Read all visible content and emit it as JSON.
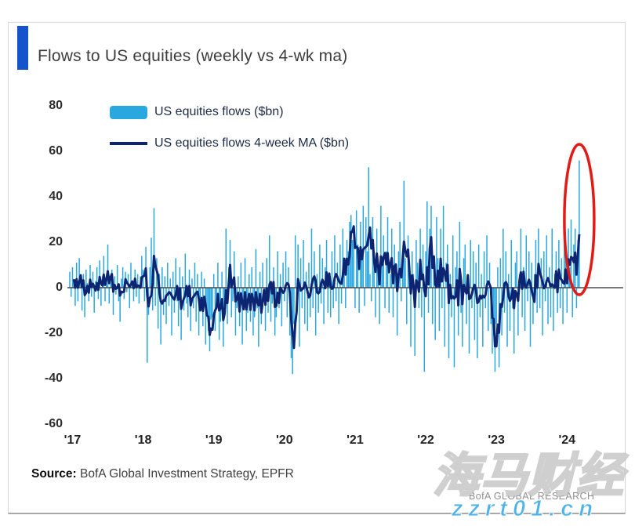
{
  "header": {
    "title": "Flows to US equities (weekly vs 4-wk ma)",
    "accent_color": "#1353cc"
  },
  "legend": {
    "items": [
      {
        "label": "US equities flows ($bn)",
        "swatch": "bar",
        "color": "#29a8e0"
      },
      {
        "label": "US equities flows 4-week MA ($bn)",
        "swatch": "line",
        "color": "#0d2472"
      }
    ]
  },
  "footer": {
    "source_label": "Source:",
    "source_text": " BofA Global Investment Strategy, EPFR",
    "brand": "BofA GLOBAL RESEARCH"
  },
  "watermark": {
    "cjk_text": "海马财经",
    "url_text": "zzrt01.cn",
    "url_color": "#4db2e8"
  },
  "chart_data": {
    "type": "bar",
    "subtype": "weekly bars with 4-week moving-average line overlay",
    "title": "Flows to US equities (weekly vs 4-wk ma)",
    "xlabel": "",
    "ylabel": "",
    "x_ticks": [
      "'17",
      "'18",
      "'19",
      "'20",
      "'21",
      "'22",
      "'23",
      "'24"
    ],
    "weeks_per_year": 52,
    "y_ticks": [
      80,
      60,
      40,
      20,
      0,
      -20,
      -40,
      -60
    ],
    "ylim": [
      -65,
      85
    ],
    "grid": false,
    "legend_position": "top-left",
    "zero_line_color": "#4a4a4a",
    "annotation": {
      "shape": "ellipse",
      "highlights": "latest weekly inflow spike",
      "value": 56,
      "color": "#e11b17"
    },
    "series": [
      {
        "name": "US equities flows ($bn)",
        "type": "bar",
        "color": "#29a8e0",
        "values": [
          7,
          -4,
          9,
          3,
          -8,
          11,
          -6,
          13,
          4,
          -10,
          6,
          -13,
          8,
          2,
          -6,
          10,
          -4,
          7,
          -11,
          3,
          9,
          -5,
          12,
          -8,
          5,
          14,
          -6,
          2,
          19,
          -7,
          4,
          8,
          -12,
          5,
          -3,
          10,
          -6,
          -15,
          4,
          9,
          -5,
          7,
          -2,
          6,
          -9,
          11,
          3,
          -6,
          8,
          -4,
          6,
          -7,
          5,
          14,
          8,
          -6,
          18,
          -33,
          -12,
          9,
          22,
          -10,
          35,
          -8,
          13,
          -18,
          6,
          -25,
          9,
          -12,
          5,
          -16,
          11,
          -8,
          4,
          -21,
          7,
          -11,
          13,
          -6,
          -17,
          9,
          -23,
          5,
          -10,
          15,
          -7,
          -13,
          8,
          -19,
          4,
          -9,
          11,
          -15,
          6,
          -21,
          -10,
          7,
          -17,
          4,
          -25,
          -11,
          -19,
          -28,
          -14,
          -13,
          6,
          -19,
          -9,
          11,
          -23,
          -15,
          7,
          -26,
          -11,
          26,
          -16,
          9,
          21,
          -13,
          -6,
          16,
          -21,
          -9,
          5,
          -17,
          11,
          -25,
          -7,
          13,
          -19,
          -11,
          6,
          -15,
          9,
          -21,
          -13,
          17,
          -9,
          -26,
          7,
          -16,
          11,
          -6,
          -19,
          13,
          -11,
          23,
          -15,
          -7,
          9,
          -21,
          -13,
          16,
          -9,
          6,
          -17,
          11,
          -6,
          16,
          -13,
          9,
          -21,
          -31,
          -38,
          -16,
          23,
          -11,
          19,
          -26,
          13,
          -9,
          21,
          -16,
          7,
          -19,
          11,
          -13,
          26,
          -9,
          16,
          -21,
          6,
          -11,
          19,
          -7,
          13,
          -16,
          9,
          21,
          -11,
          6,
          -13,
          16,
          -9,
          23,
          -6,
          11,
          -16,
          19,
          -7,
          26,
          13,
          -9,
          21,
          16,
          29,
          32,
          21,
          26,
          -9,
          34,
          19,
          -11,
          29,
          13,
          36,
          -8,
          31,
          16,
          53,
          6,
          -6,
          31,
          16,
          -13,
          26,
          9,
          -16,
          36,
          11,
          23,
          -9,
          16,
          31,
          -11,
          6,
          26,
          -13,
          19,
          9,
          -21,
          16,
          29,
          -6,
          11,
          47,
          13,
          -16,
          23,
          9,
          -26,
          16,
          6,
          -30,
          21,
          11,
          -9,
          26,
          -13,
          19,
          -37,
          16,
          38,
          -11,
          26,
          36,
          -16,
          9,
          -23,
          31,
          13,
          -19,
          26,
          -9,
          36,
          -26,
          11,
          19,
          -31,
          6,
          -13,
          23,
          -35,
          9,
          16,
          -21,
          29,
          -11,
          -26,
          13,
          19,
          -16,
          6,
          -29,
          21,
          -9,
          16,
          -23,
          11,
          -31,
          19,
          -13,
          6,
          -26,
          16,
          -9,
          23,
          -19,
          11,
          -16,
          -29,
          -21,
          -37,
          -16,
          9,
          -35,
          13,
          -21,
          26,
          -11,
          16,
          -26,
          6,
          -19,
          21,
          -9,
          -29,
          11,
          16,
          -21,
          6,
          26,
          -13,
          9,
          -19,
          23,
          -6,
          16,
          -26,
          11,
          -16,
          6,
          21,
          -11,
          26,
          -9,
          13,
          -21,
          16,
          -6,
          23,
          -16,
          9,
          -13,
          26,
          -19,
          6,
          16,
          -11,
          21,
          -9,
          13,
          -16,
          19,
          16,
          -11,
          26,
          9,
          30,
          -13,
          19,
          26,
          -9,
          21,
          56
        ]
      },
      {
        "name": "US equities flows 4-week MA ($bn)",
        "type": "line",
        "color": "#0d2472",
        "derived": "trailing 4-week moving average of the weekly flows series"
      }
    ]
  }
}
